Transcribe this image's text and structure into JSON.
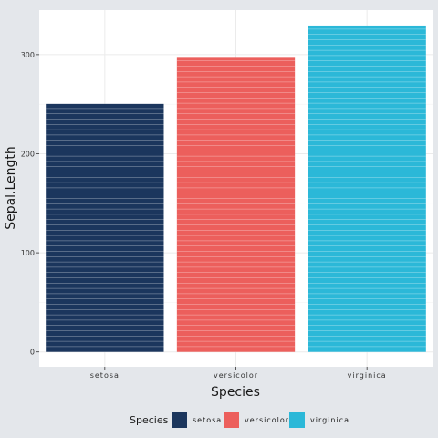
{
  "chart_data": {
    "type": "bar",
    "title": "",
    "xlabel": "Species",
    "ylabel": "Sepal.Length",
    "categories": [
      "setosa",
      "versicolor",
      "virginica"
    ],
    "values": [
      250.3,
      296.8,
      329.4
    ],
    "colors": [
      "#1b365d",
      "#ec5f5c",
      "#2bb8d8"
    ],
    "stripe_color": "#ffffff",
    "ylim": [
      -15,
      345
    ],
    "yticks": [
      0,
      100,
      200,
      300
    ],
    "grid": true,
    "legend": {
      "position": "bottom",
      "title": "Species",
      "labels": [
        "setosa",
        "versicolor",
        "virginica"
      ]
    }
  }
}
